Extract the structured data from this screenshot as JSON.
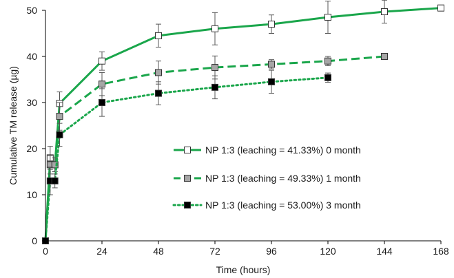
{
  "chart_data": {
    "type": "line",
    "title": "",
    "xlabel": "Time (hours)",
    "ylabel": "Cumulative TM release (µg)",
    "xlim": [
      0,
      168
    ],
    "ylim": [
      0,
      50
    ],
    "xticks": [
      0,
      24,
      48,
      72,
      96,
      120,
      144,
      168
    ],
    "yticks": [
      0,
      10,
      20,
      30,
      40,
      50
    ],
    "grid": false,
    "legend_position": "center-right",
    "series_color": "#1aa64b",
    "series": [
      {
        "name": "NP 1:3 (leaching = 41.33%) 0 month",
        "line_style": "solid",
        "marker": "open-square",
        "marker_fill": "#ffffff",
        "x": [
          0,
          2,
          4,
          6,
          24,
          48,
          72,
          96,
          120,
          144,
          168
        ],
        "y": [
          0,
          18,
          16.5,
          29.8,
          39,
          44.5,
          46,
          47,
          48.5,
          49.7,
          50.5
        ],
        "err": [
          0,
          2.5,
          1.5,
          2.5,
          2.0,
          2.5,
          3.5,
          2.0,
          3.5,
          2.5,
          0
        ]
      },
      {
        "name": "NP 1:3 (leaching = 49.33%) 1 month",
        "line_style": "dashed",
        "marker": "gray-square",
        "marker_fill": "#a6a6a6",
        "x": [
          0,
          2,
          4,
          6,
          24,
          48,
          72,
          96,
          120,
          144
        ],
        "y": [
          0,
          16.5,
          16.5,
          27,
          34,
          36.5,
          37.6,
          38.3,
          39,
          40
        ],
        "err": [
          0,
          2.0,
          1.5,
          3.0,
          2.5,
          2.5,
          2.5,
          1.0,
          1.0,
          0
        ]
      },
      {
        "name": "NP 1:3 (leaching = 53.00%) 3 month",
        "line_style": "dotted",
        "marker": "filled-square",
        "marker_fill": "#000000",
        "x": [
          0,
          2,
          4,
          6,
          24,
          48,
          72,
          96,
          120
        ],
        "y": [
          0,
          13,
          13,
          23,
          30,
          32,
          33.3,
          34.5,
          35.4
        ],
        "err": [
          0,
          3.0,
          1.5,
          2.5,
          3.0,
          2.5,
          2.5,
          2.5,
          1.0
        ]
      }
    ]
  }
}
